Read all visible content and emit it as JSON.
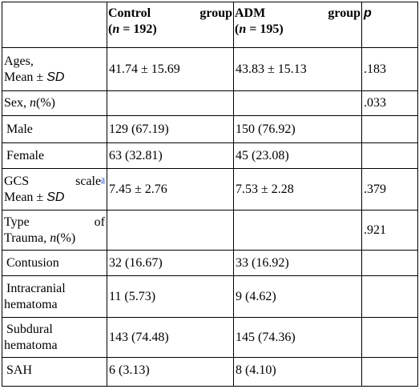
{
  "header": {
    "control_word1": "Control",
    "control_word2": "group",
    "control_n": "(n = 192)",
    "adm_word1": "ADM",
    "adm_word2": "group",
    "adm_n": "(n = 195)",
    "p": "p"
  },
  "rows": {
    "ages": {
      "label1": "Ages,",
      "label2": "Mean ± SD",
      "control": "41.74 ± 15.69",
      "adm": "43.83 ± 15.13",
      "p": ".183"
    },
    "sex": {
      "label": "Sex, n(%)",
      "p": ".033"
    },
    "male": {
      "label": "Male",
      "control": "129 (67.19)",
      "adm": "150 (76.92)"
    },
    "female": {
      "label": "Female",
      "control": "63 (32.81)",
      "adm": "45 (23.08)"
    },
    "gcs": {
      "label_word1": "GCS",
      "label_word2": "scale",
      "footnote": "a",
      "label_line2": "Mean ± SD",
      "control": "7.45 ± 2.76",
      "adm": "7.53 ± 2.28",
      "p": ".379"
    },
    "trauma": {
      "label_word1": "Type",
      "label_word2": "of",
      "label_line2": "Trauma, n(%)",
      "p": ".921"
    },
    "contusion": {
      "label": "Contusion",
      "control": "32 (16.67)",
      "adm": "33 (16.92)"
    },
    "intracranial": {
      "label1": "Intracranial",
      "label2": "hematoma",
      "control": "11 (5.73)",
      "adm": "9 (4.62)"
    },
    "subdural": {
      "label1": "Subdural",
      "label2": "hematoma",
      "control": "143 (74.48)",
      "adm": "145 (74.36)"
    },
    "sah": {
      "label": "SAH",
      "control": "6 (3.13)",
      "adm": "8 (4.10)"
    }
  }
}
